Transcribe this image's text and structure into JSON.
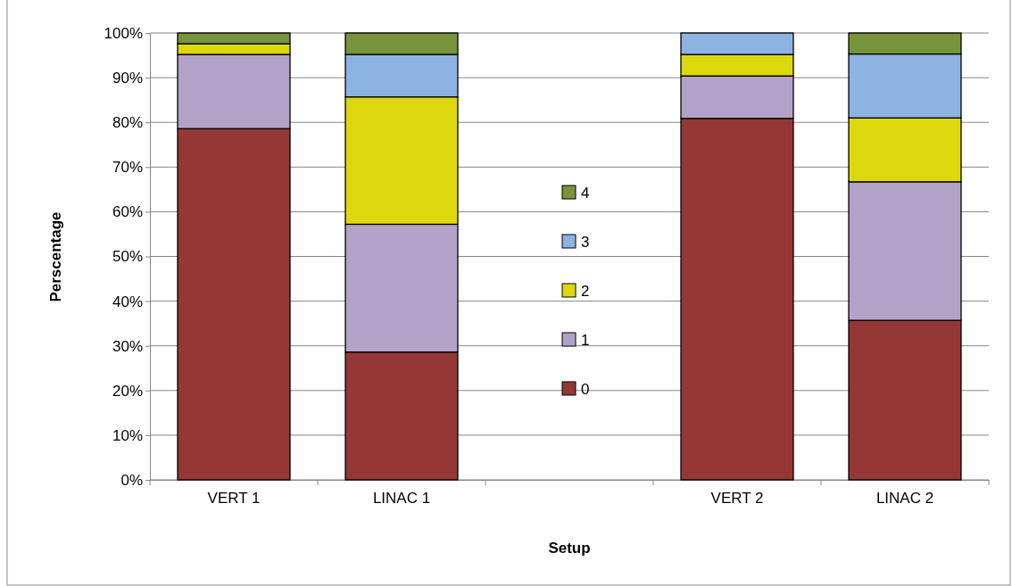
{
  "chart_data": {
    "type": "bar",
    "stacked": true,
    "xlabel": "Setup",
    "ylabel": "Perscentage",
    "categories": [
      "VERT 1",
      "LINAC 1",
      null,
      "VERT 2",
      "LINAC 2"
    ],
    "series": [
      {
        "name": "0",
        "color": "#953735",
        "values": [
          78.6,
          28.6,
          null,
          80.9,
          35.7
        ]
      },
      {
        "name": "1",
        "color": "#b3a2c7",
        "values": [
          16.6,
          28.6,
          null,
          9.5,
          31.0
        ]
      },
      {
        "name": "2",
        "color": "#ddd80e",
        "values": [
          2.4,
          28.5,
          null,
          4.8,
          14.3
        ]
      },
      {
        "name": "3",
        "color": "#8db3e2",
        "values": [
          0,
          9.5,
          null,
          4.8,
          14.3
        ]
      },
      {
        "name": "4",
        "color": "#77933c",
        "values": [
          2.4,
          4.8,
          null,
          0,
          4.7
        ]
      }
    ],
    "ylim": [
      0,
      100
    ],
    "yticks": [
      {
        "value": 0,
        "label": "0%"
      },
      {
        "value": 10,
        "label": "10%"
      },
      {
        "value": 20,
        "label": "20%"
      },
      {
        "value": 30,
        "label": "30%"
      },
      {
        "value": 40,
        "label": "40%"
      },
      {
        "value": 50,
        "label": "50%"
      },
      {
        "value": 60,
        "label": "60%"
      },
      {
        "value": 70,
        "label": "70%"
      },
      {
        "value": 80,
        "label": "80%"
      },
      {
        "value": 90,
        "label": "90%"
      },
      {
        "value": 100,
        "label": "100%"
      }
    ],
    "grid": "y",
    "legend": "center"
  }
}
